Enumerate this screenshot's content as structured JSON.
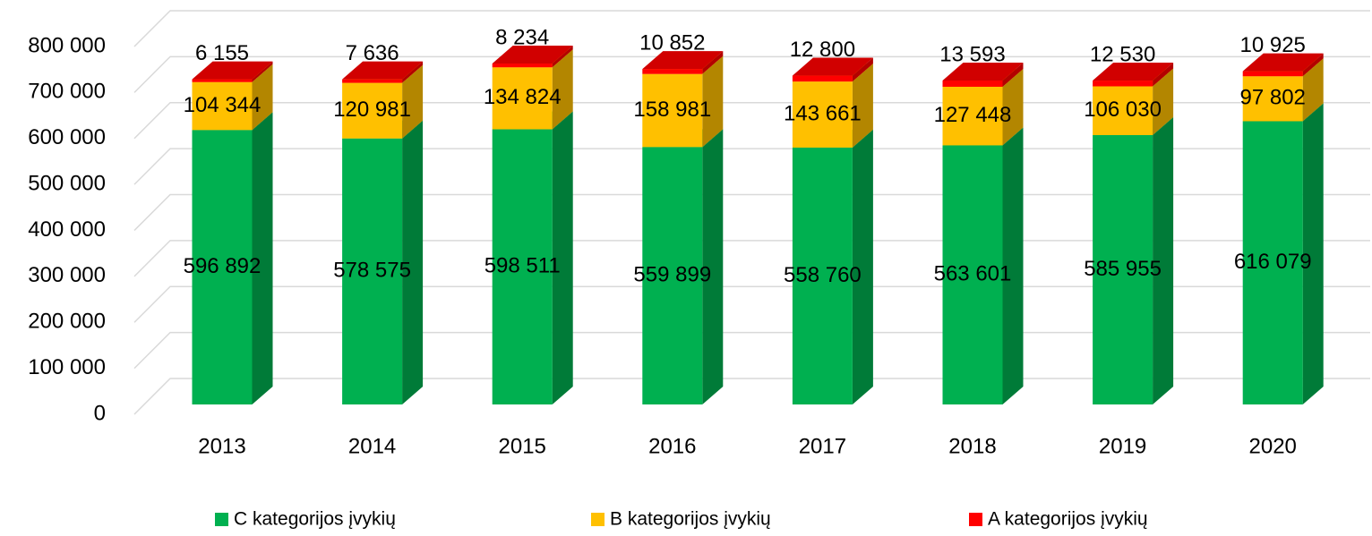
{
  "chart_data": {
    "type": "bar3d_stacked",
    "categories": [
      "2013",
      "2014",
      "2015",
      "2016",
      "2017",
      "2018",
      "2019",
      "2020"
    ],
    "series": [
      {
        "name": "C kategorijos įvykių",
        "color": "#00b050",
        "values": [
          596892,
          578575,
          598511,
          559899,
          558760,
          563601,
          585955,
          616079
        ],
        "value_labels": [
          "596 892",
          "578 575",
          "598 511",
          "559 899",
          "558 760",
          "563 601",
          "585 955",
          "616 079"
        ]
      },
      {
        "name": "B kategorijos įvykių",
        "color": "#ffc000",
        "values": [
          104344,
          120981,
          134824,
          158981,
          143661,
          127448,
          106030,
          97802
        ],
        "value_labels": [
          "104 344",
          "120 981",
          "134 824",
          "158 981",
          "143 661",
          "127 448",
          "106 030",
          "97 802"
        ]
      },
      {
        "name": "A kategorijos įvykių",
        "color": "#ff0000",
        "values": [
          6155,
          7636,
          8234,
          10852,
          12800,
          13593,
          12530,
          10925
        ],
        "value_labels": [
          "6 155",
          "7 636",
          "8 234",
          "10 852",
          "12 800",
          "13 593",
          "12 530",
          "10 925"
        ]
      }
    ],
    "ylim": [
      0,
      800000
    ],
    "yticks": [
      0,
      {
        "value": 100000,
        "label": "100 000"
      },
      {
        "value": 200000,
        "label": "200 000"
      },
      {
        "value": 300000,
        "label": "300 000"
      },
      {
        "value": 400000,
        "label": "400 000"
      },
      {
        "value": 500000,
        "label": "500 000"
      },
      {
        "value": 600000,
        "label": "600 000"
      },
      {
        "value": 700000,
        "label": "700 000"
      },
      {
        "value": 800000,
        "label": "800 000"
      }
    ],
    "grid": true,
    "legend": "bottom"
  }
}
